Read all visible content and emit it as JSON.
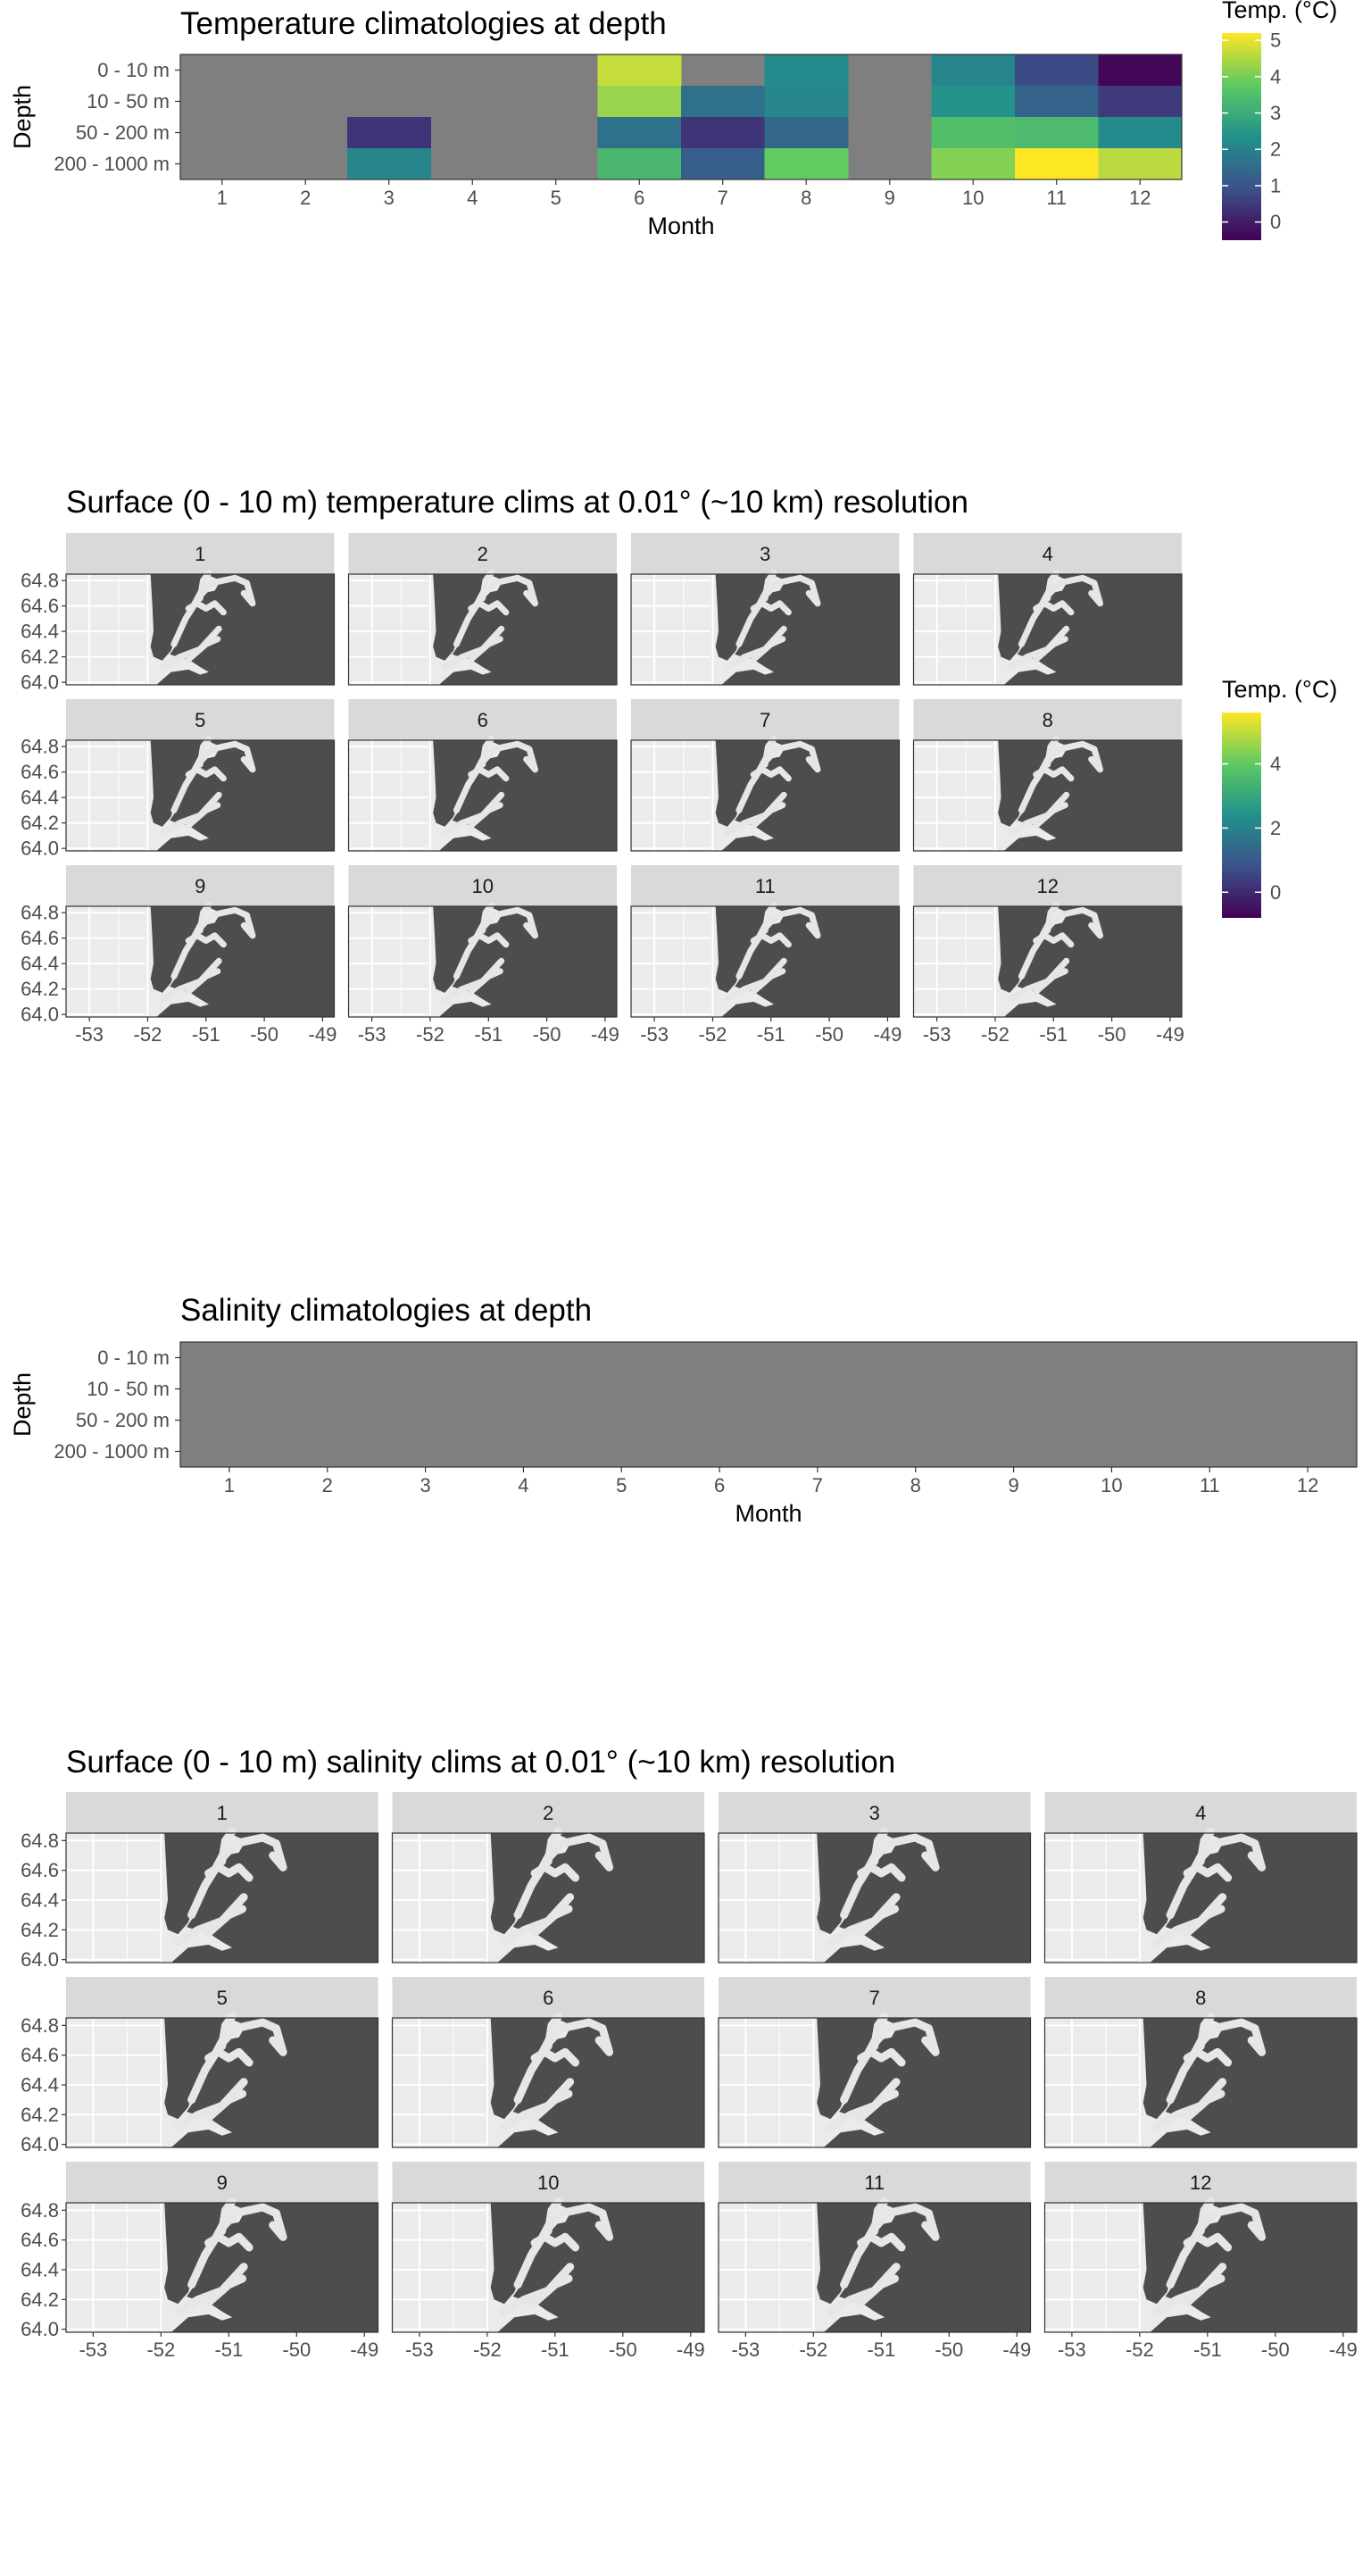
{
  "chart_data": [
    {
      "type": "heatmap",
      "title": "Temperature climatologies at depth",
      "xlabel": "Month",
      "ylabel": "Depth",
      "x": [
        "1",
        "2",
        "3",
        "4",
        "5",
        "6",
        "7",
        "8",
        "9",
        "10",
        "11",
        "12"
      ],
      "y": [
        "0 - 10 m",
        "10 - 50 m",
        "50 - 200 m",
        "200 - 1000 m"
      ],
      "values": [
        [
          null,
          null,
          null,
          null,
          null,
          4.7,
          null,
          2.2,
          null,
          2.1,
          0.8,
          -0.4
        ],
        [
          null,
          null,
          null,
          null,
          null,
          4.3,
          1.6,
          2.1,
          null,
          2.4,
          1.3,
          0.5
        ],
        [
          null,
          null,
          0.4,
          null,
          null,
          1.6,
          0.4,
          1.4,
          null,
          3.5,
          3.4,
          2.2
        ],
        [
          null,
          null,
          2.1,
          null,
          null,
          3.3,
          1.2,
          3.8,
          null,
          4.1,
          5.2,
          4.6
        ]
      ],
      "na_color": "#7f7f7f",
      "legend": {
        "title": "Temp. (°C)",
        "ticks": [
          "5",
          "4",
          "3",
          "2",
          "1",
          "0"
        ],
        "range": [
          -0.5,
          5.2
        ],
        "placement": "right"
      }
    },
    {
      "type": "map",
      "title": "Surface (0 - 10 m) temperature clims at 0.01° (~10 km) resolution",
      "panels": [
        "1",
        "2",
        "3",
        "4",
        "5",
        "6",
        "7",
        "8",
        "9",
        "10",
        "11",
        "12"
      ],
      "x_ticks": [
        "-53",
        "-52",
        "-51",
        "-50",
        "-49"
      ],
      "y_ticks": [
        "64.8",
        "64.6",
        "64.4",
        "64.2",
        "64.0"
      ],
      "xlim": [
        -53.4,
        -48.8
      ],
      "ylim": [
        63.98,
        64.85
      ],
      "land_color": "#4d4d4d",
      "legend": {
        "title": "Temp. (°C)",
        "ticks": [
          "4",
          "2",
          "0"
        ],
        "range": [
          -0.8,
          5.6
        ],
        "placement": "right"
      }
    },
    {
      "type": "heatmap",
      "title": "Salinity climatologies at depth",
      "xlabel": "Month",
      "ylabel": "Depth",
      "x": [
        "1",
        "2",
        "3",
        "4",
        "5",
        "6",
        "7",
        "8",
        "9",
        "10",
        "11",
        "12"
      ],
      "y": [
        "0 - 10 m",
        "10 - 50 m",
        "50 - 200 m",
        "200 - 1000 m"
      ],
      "values": [
        [
          null,
          null,
          null,
          null,
          null,
          null,
          null,
          null,
          null,
          null,
          null,
          null
        ],
        [
          null,
          null,
          null,
          null,
          null,
          null,
          null,
          null,
          null,
          null,
          null,
          null
        ],
        [
          null,
          null,
          null,
          null,
          null,
          null,
          null,
          null,
          null,
          null,
          null,
          null
        ],
        [
          null,
          null,
          null,
          null,
          null,
          null,
          null,
          null,
          null,
          null,
          null,
          null
        ]
      ],
      "na_color": "#7f7f7f"
    },
    {
      "type": "map",
      "title": "Surface (0 - 10 m) salinity clims at 0.01° (~10 km) resolution",
      "panels": [
        "1",
        "2",
        "3",
        "4",
        "5",
        "6",
        "7",
        "8",
        "9",
        "10",
        "11",
        "12"
      ],
      "x_ticks": [
        "-53",
        "-52",
        "-51",
        "-50",
        "-49"
      ],
      "y_ticks": [
        "64.8",
        "64.6",
        "64.4",
        "64.2",
        "64.0"
      ],
      "xlim": [
        -53.4,
        -48.8
      ],
      "ylim": [
        63.98,
        64.85
      ],
      "land_color": "#4d4d4d"
    }
  ]
}
